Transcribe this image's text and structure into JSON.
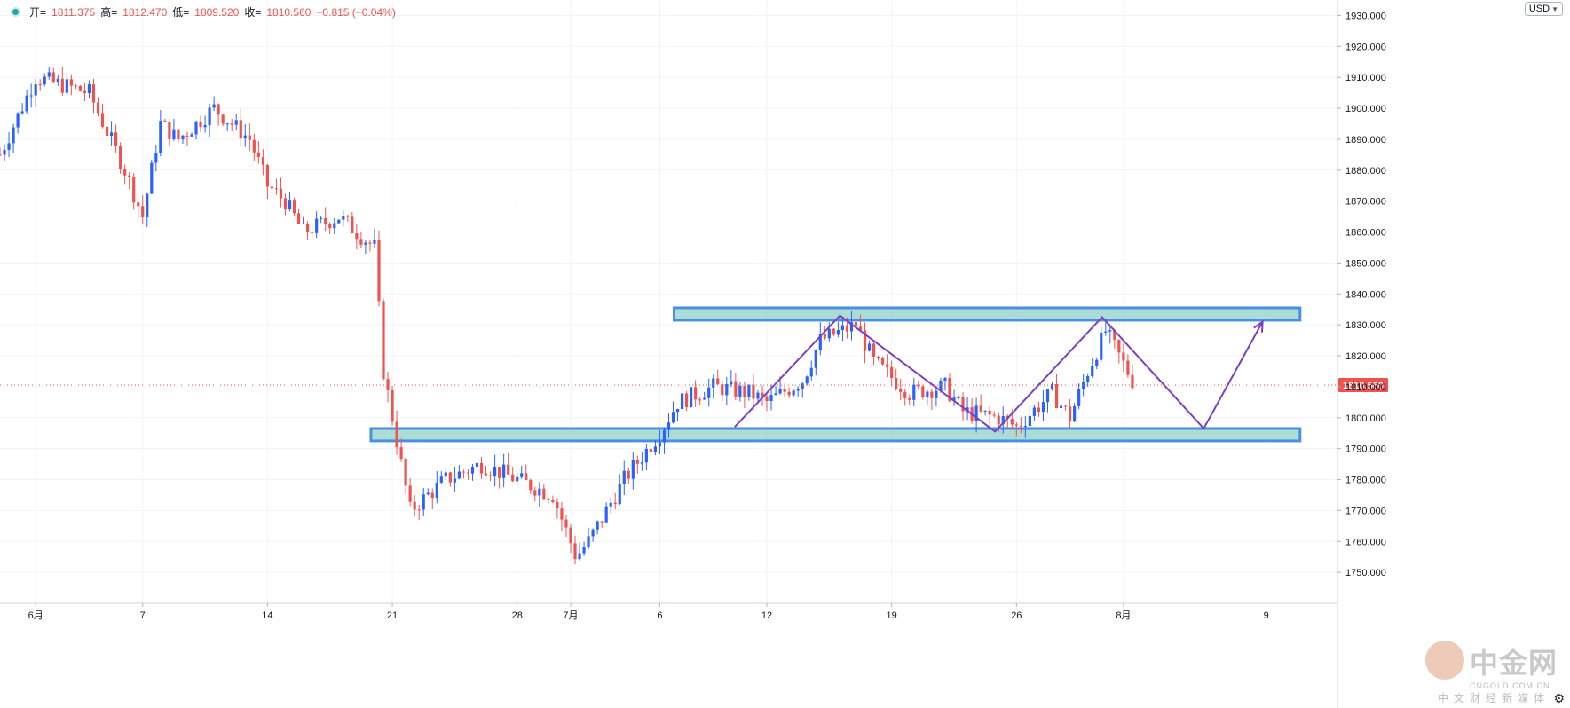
{
  "header": {
    "open_label": "开=",
    "open_value": "1811.375",
    "high_label": "高=",
    "high_value": "1812.470",
    "low_label": "低=",
    "low_value": "1809.520",
    "close_label": "收=",
    "close_value": "1810.560",
    "change": "−0.815 (−0.04%)"
  },
  "currency": "USD",
  "current_price_label": "1810.560",
  "watermark": {
    "brand": "中金网",
    "site": "CNGOLD.COM.CN",
    "tagline": "中文财经新媒体"
  },
  "chart_data": {
    "type": "candlestick",
    "title": "",
    "xlabel": "",
    "ylabel": "",
    "y_ticks": [
      1750,
      1760,
      1770,
      1780,
      1790,
      1800,
      1810,
      1820,
      1830,
      1840,
      1850,
      1860,
      1870,
      1880,
      1890,
      1900,
      1910,
      1920,
      1930
    ],
    "y_tick_labels": [
      "1750.000",
      "1760.000",
      "1770.000",
      "1780.000",
      "1790.000",
      "1800.000",
      "1810.000",
      "1820.000",
      "1830.000",
      "1840.000",
      "1850.000",
      "1860.000",
      "1870.000",
      "1880.000",
      "1890.000",
      "1900.000",
      "1910.000",
      "1920.000",
      "1930.000"
    ],
    "ylim": [
      1740,
      1935
    ],
    "x_ticks": [
      {
        "label": "6月",
        "day": 0
      },
      {
        "label": "7",
        "day": 6
      },
      {
        "label": "14",
        "day": 13
      },
      {
        "label": "21",
        "day": 20
      },
      {
        "label": "28",
        "day": 27
      },
      {
        "label": "7月",
        "day": 30
      },
      {
        "label": "6",
        "day": 35
      },
      {
        "label": "12",
        "day": 41
      },
      {
        "label": "19",
        "day": 48
      },
      {
        "label": "26",
        "day": 55
      },
      {
        "label": "8月",
        "day": 61
      },
      {
        "label": "9",
        "day": 69
      }
    ],
    "xlim_days": [
      -2,
      73
    ],
    "current_price": 1810.56,
    "colors": {
      "up": "#2962ff",
      "down": "#ef5350",
      "zone_fill": "#8fd0c8",
      "zone_border": "#4a90e2",
      "pattern": "#7b3fc4",
      "price_line": "#ef5350"
    },
    "candles_path_days": [
      -2,
      0,
      3,
      5,
      6,
      7,
      8,
      10,
      12,
      13,
      14,
      15,
      17,
      19,
      19.5,
      21,
      23,
      25,
      27,
      29,
      30.3,
      31,
      33,
      35,
      36,
      38,
      40,
      41,
      43,
      44,
      46,
      47,
      49,
      51,
      52,
      54,
      55,
      57,
      58,
      59,
      60,
      61.5
    ],
    "candles_path_prices": [
      1885,
      1910,
      1905,
      1880,
      1865,
      1895,
      1890,
      1900,
      1890,
      1875,
      1870,
      1860,
      1865,
      1855,
      1815,
      1770,
      1780,
      1785,
      1780,
      1775,
      1755,
      1760,
      1780,
      1795,
      1805,
      1810,
      1808,
      1805,
      1812,
      1825,
      1830,
      1818,
      1808,
      1810,
      1802,
      1800,
      1797,
      1808,
      1800,
      1815,
      1828,
      1812
    ],
    "zones": [
      {
        "name": "resistance",
        "from_day": 35.8,
        "to_day": 70.9,
        "low": 1831.5,
        "high": 1835.5
      },
      {
        "name": "support",
        "from_day": 18.8,
        "to_day": 70.9,
        "low": 1792.5,
        "high": 1796.5
      }
    ],
    "pattern_points": [
      {
        "day": 39.2,
        "price": 1797
      },
      {
        "day": 45.1,
        "price": 1833
      },
      {
        "day": 53.8,
        "price": 1795.5
      },
      {
        "day": 59.8,
        "price": 1832.5
      },
      {
        "day": 65.5,
        "price": 1796.5
      },
      {
        "day": 68.8,
        "price": 1831
      }
    ]
  }
}
